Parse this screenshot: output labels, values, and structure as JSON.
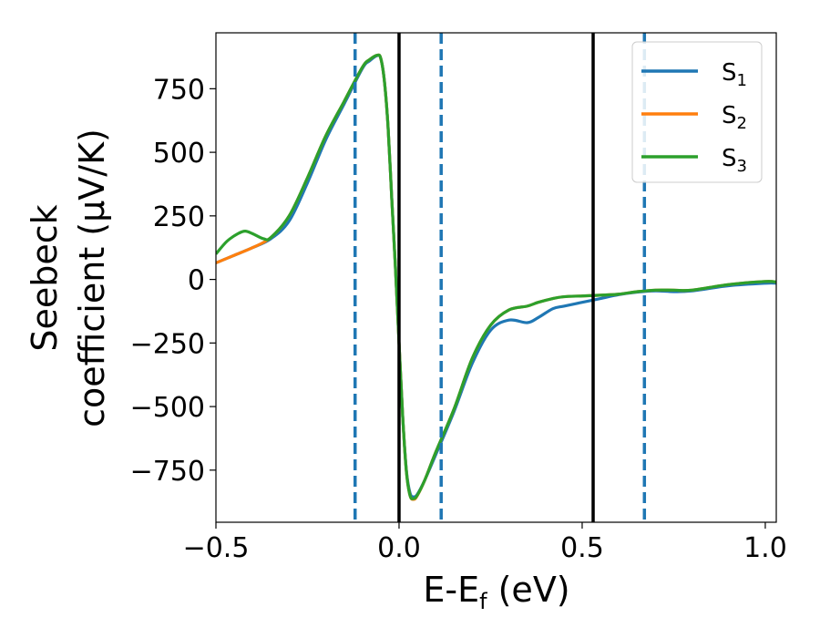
{
  "chart_data": {
    "type": "line",
    "xlabel": "E-E",
    "xlabel_sub": "f",
    "xlabel_unit": " (eV)",
    "ylabel_line1": "Seebeck",
    "ylabel_line2": "coefficient  (μV/K)",
    "xlim": [
      -0.5,
      1.03
    ],
    "ylim": [
      -955,
      970
    ],
    "xticks": [
      -0.5,
      0.0,
      0.5,
      1.0
    ],
    "xtick_labels": [
      "−0.5",
      "0.0",
      "0.5",
      "1.0"
    ],
    "yticks": [
      -750,
      -500,
      -250,
      0,
      250,
      500,
      750
    ],
    "ytick_labels": [
      "−750",
      "−500",
      "−250",
      "0",
      "250",
      "500",
      "750"
    ],
    "grid": false,
    "legend_position": "top-right",
    "vlines": [
      {
        "x": 0.0,
        "style": "solid",
        "color": "#000000"
      },
      {
        "x": 0.53,
        "style": "solid",
        "color": "#000000"
      },
      {
        "x": -0.12,
        "style": "dashed",
        "color": "#1f77b4"
      },
      {
        "x": 0.115,
        "style": "dashed",
        "color": "#1f77b4"
      },
      {
        "x": 0.67,
        "style": "dashed",
        "color": "#1f77b4"
      }
    ],
    "series": [
      {
        "name": "S",
        "sub": "1",
        "color": "#1f77b4",
        "x": [
          -0.5,
          -0.45,
          -0.4,
          -0.35,
          -0.3,
          -0.25,
          -0.2,
          -0.15,
          -0.1,
          -0.08,
          -0.06,
          -0.05,
          -0.04,
          -0.03,
          -0.02,
          -0.01,
          0.0,
          0.01,
          0.02,
          0.03,
          0.04,
          0.05,
          0.07,
          0.1,
          0.15,
          0.2,
          0.25,
          0.3,
          0.35,
          0.38,
          0.42,
          0.45,
          0.5,
          0.55,
          0.6,
          0.65,
          0.7,
          0.75,
          0.8,
          0.9,
          1.0,
          1.03
        ],
        "y": [
          65,
          95,
          125,
          160,
          230,
          380,
          550,
          690,
          830,
          860,
          880,
          870,
          780,
          600,
          320,
          50,
          -250,
          -540,
          -750,
          -840,
          -855,
          -845,
          -790,
          -690,
          -520,
          -330,
          -200,
          -160,
          -170,
          -150,
          -115,
          -105,
          -90,
          -75,
          -60,
          -50,
          -45,
          -48,
          -45,
          -25,
          -15,
          -15
        ]
      },
      {
        "name": "S",
        "sub": "2",
        "color": "#ff7f0e",
        "x": [
          -0.5,
          -0.45,
          -0.4,
          -0.35,
          -0.3,
          -0.25,
          -0.2,
          -0.15,
          -0.1,
          -0.08,
          -0.06,
          -0.05,
          -0.04,
          -0.03,
          -0.02,
          -0.01,
          0.0,
          0.01,
          0.02,
          0.03,
          0.04,
          0.05,
          0.07,
          0.1,
          0.15,
          0.2,
          0.25,
          0.3,
          0.35,
          0.38,
          0.42,
          0.45,
          0.5,
          0.55,
          0.6,
          0.65,
          0.7,
          0.75,
          0.8,
          0.9,
          1.0,
          1.03
        ],
        "y": [
          65,
          95,
          125,
          165,
          250,
          400,
          565,
          700,
          835,
          865,
          882,
          870,
          780,
          600,
          320,
          50,
          -250,
          -540,
          -755,
          -850,
          -865,
          -850,
          -790,
          -680,
          -510,
          -310,
          -180,
          -120,
          -105,
          -90,
          -75,
          -68,
          -65,
          -62,
          -58,
          -48,
          -42,
          -42,
          -42,
          -20,
          -8,
          -10
        ]
      },
      {
        "name": "S",
        "sub": "3",
        "color": "#2ca02c",
        "x": [
          -0.5,
          -0.47,
          -0.44,
          -0.42,
          -0.4,
          -0.37,
          -0.35,
          -0.3,
          -0.25,
          -0.2,
          -0.15,
          -0.1,
          -0.08,
          -0.06,
          -0.05,
          -0.04,
          -0.03,
          -0.02,
          -0.01,
          0.0,
          0.01,
          0.02,
          0.03,
          0.04,
          0.05,
          0.07,
          0.1,
          0.15,
          0.2,
          0.25,
          0.3,
          0.35,
          0.38,
          0.42,
          0.45,
          0.5,
          0.55,
          0.6,
          0.65,
          0.7,
          0.75,
          0.8,
          0.9,
          1.0,
          1.03
        ],
        "y": [
          100,
          150,
          180,
          190,
          180,
          160,
          165,
          250,
          400,
          565,
          700,
          835,
          865,
          882,
          870,
          780,
          600,
          320,
          50,
          -250,
          -540,
          -755,
          -850,
          -862,
          -848,
          -790,
          -680,
          -510,
          -310,
          -180,
          -120,
          -105,
          -90,
          -75,
          -68,
          -65,
          -62,
          -58,
          -48,
          -42,
          -42,
          -42,
          -20,
          -8,
          -10
        ]
      }
    ]
  }
}
